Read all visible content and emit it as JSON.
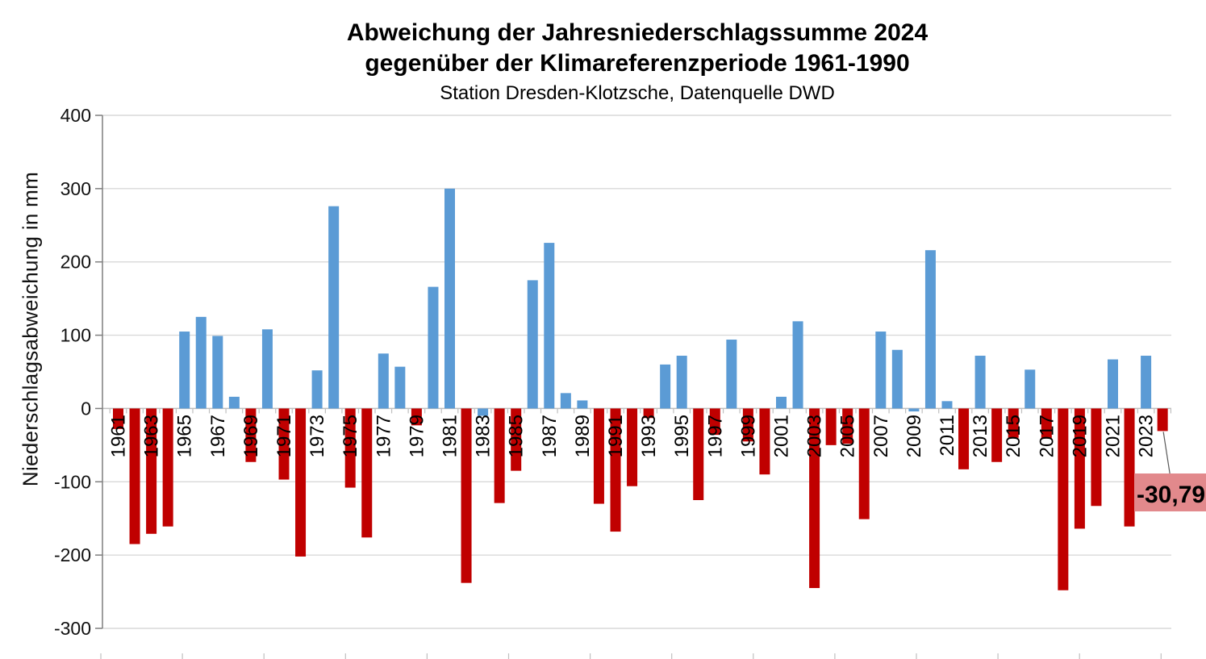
{
  "title": {
    "line1": "Abweichung der Jahresniederschlagssumme 2024",
    "line2": "gegenüber der Klimareferenzperiode 1961-1990",
    "line3": "Station Dresden-Klotzsche, Datenquelle DWD"
  },
  "y_axis": {
    "title": "Niederschlagsabweichung in mm",
    "tick_labels": [
      "400",
      "300",
      "200",
      "100",
      "0",
      "-100",
      "-200",
      "-300"
    ]
  },
  "x_axis": {
    "tick_labels": [
      "1961",
      "1963",
      "1965",
      "1967",
      "1969",
      "1971",
      "1973",
      "1975",
      "1977",
      "1979",
      "1981",
      "1983",
      "1985",
      "1987",
      "1989",
      "1991",
      "1993",
      "1995",
      "1997",
      "1999",
      "2001",
      "2003",
      "2005",
      "2007",
      "2009",
      "2011",
      "2013",
      "2015",
      "2017",
      "2019",
      "2021",
      "2023"
    ]
  },
  "annotation": {
    "text": "-30,79",
    "year": 2024
  },
  "colors": {
    "bar_positive": "#5B9BD5",
    "bar_negative": "#C00000",
    "callout_fill": "#E2898C",
    "callout_line": "#595959",
    "gridline": "#D9D9D9",
    "axis_line": "#7F7F7F",
    "category_axis": "#BFBFBF",
    "text": "#111111"
  },
  "chart_data": {
    "type": "bar",
    "title": "Abweichung der Jahresniederschlagssumme 2024 gegenüber der Klimareferenzperiode 1961-1990",
    "subtitle": "Station Dresden-Klotzsche, Datenquelle DWD",
    "xlabel": "",
    "ylabel": "Niederschlagsabweichung in mm",
    "ylim": [
      -300,
      400
    ],
    "ytick_step": 100,
    "grid": true,
    "legend": false,
    "start_year": 1961,
    "end_year": 2024,
    "x_label_every": 2,
    "values": [
      -28,
      -185,
      -171,
      -161,
      105,
      125,
      99,
      16,
      -73,
      108,
      -97,
      -202,
      52,
      276,
      -108,
      -176,
      75,
      57,
      -23,
      166,
      300,
      -238,
      -10,
      -129,
      -85,
      175,
      226,
      21,
      11,
      -130,
      -168,
      -106,
      -13,
      60,
      72,
      -125,
      -36,
      94,
      -45,
      -90,
      16,
      119,
      -245,
      -50,
      -48,
      -151,
      105,
      80,
      -4,
      216,
      10,
      -83,
      72,
      -73,
      -40,
      53,
      -41,
      -248,
      -164,
      -133,
      67,
      -161,
      72,
      -30.79
    ],
    "blue_negative_years": [
      1983,
      2009
    ],
    "annotated_value_label": "-30,79"
  }
}
